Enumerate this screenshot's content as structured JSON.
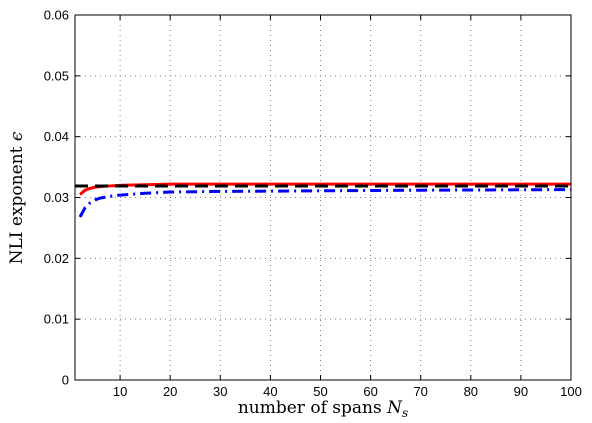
{
  "chart_data": {
    "type": "line",
    "xlabel": "number of spans N_s",
    "xlabel_main": "number of spans ",
    "xlabel_var": "N",
    "xlabel_sub": "s",
    "ylabel": "NLI exponent ϵ",
    "ylabel_main": "NLI exponent ",
    "ylabel_var": "ϵ",
    "xlim": [
      1,
      100
    ],
    "ylim": [
      0,
      0.06
    ],
    "x_ticks": [
      10,
      20,
      30,
      40,
      50,
      60,
      70,
      80,
      90,
      100
    ],
    "x_tick_labels": [
      "10",
      "20",
      "30",
      "40",
      "50",
      "60",
      "70",
      "80",
      "90",
      "100"
    ],
    "y_ticks": [
      0,
      0.01,
      0.02,
      0.03,
      0.04,
      0.05,
      0.06
    ],
    "y_tick_labels": [
      "0",
      "0.01",
      "0.02",
      "0.03",
      "0.04",
      "0.05",
      "0.06"
    ],
    "grid": true,
    "series": [
      {
        "color": "#ff0000",
        "style": "solid",
        "x": [
          2,
          3,
          4,
          5,
          6,
          8,
          10,
          15,
          20,
          30,
          50,
          70,
          100
        ],
        "y": [
          0.0305,
          0.0312,
          0.0315,
          0.0317,
          0.0318,
          0.0319,
          0.032,
          0.0321,
          0.0322,
          0.0322,
          0.0322,
          0.0322,
          0.0322
        ]
      },
      {
        "color": "#000000",
        "style": "dashed",
        "x": [
          1,
          100
        ],
        "y": [
          0.0319,
          0.0319
        ]
      },
      {
        "color": "#0000ff",
        "style": "dashdot",
        "x": [
          2,
          3,
          4,
          5,
          6,
          8,
          10,
          15,
          20,
          30,
          50,
          70,
          100
        ],
        "y": [
          0.0268,
          0.0283,
          0.0291,
          0.0296,
          0.0299,
          0.0302,
          0.0304,
          0.0307,
          0.0309,
          0.031,
          0.0311,
          0.0312,
          0.0313
        ]
      }
    ]
  }
}
